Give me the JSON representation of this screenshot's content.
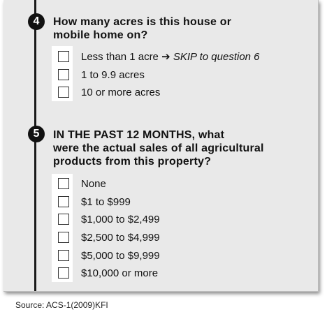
{
  "questions": [
    {
      "number": "4",
      "text_line1": "How many acres is this house or",
      "text_line2": "mobile home on?",
      "options": [
        {
          "label": "Less than 1 acre",
          "arrow": "➔",
          "skip": "SKIP to question 6"
        },
        {
          "label": "1 to 9.9 acres"
        },
        {
          "label": "10 or more acres"
        }
      ]
    },
    {
      "number": "5",
      "text_line1": "IN THE PAST 12 MONTHS, what",
      "text_line2": "were the actual sales of all agricultural",
      "text_line3": "products from this property?",
      "options": [
        {
          "label": "None"
        },
        {
          "label": "$1 to $999"
        },
        {
          "label": "$1,000 to $2,499"
        },
        {
          "label": "$2,500 to $4,999"
        },
        {
          "label": "$5,000 to $9,999"
        },
        {
          "label": "$10,000 or more"
        }
      ]
    }
  ],
  "source": "Source:  ACS-1(2009)KFI"
}
